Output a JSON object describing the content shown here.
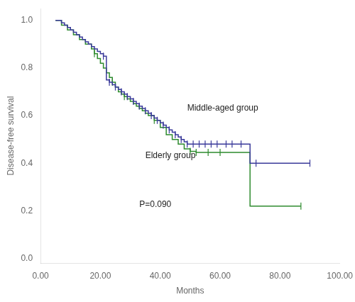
{
  "chart_data": {
    "type": "step",
    "x_label": "Months",
    "y_label": "Disease-free survival",
    "xlim": [
      0,
      100
    ],
    "ylim": [
      -0.02,
      1.05
    ],
    "xticks": [
      {
        "value": 0,
        "label": "0.00"
      },
      {
        "value": 20,
        "label": "20.00"
      },
      {
        "value": 40,
        "label": "40.00"
      },
      {
        "value": 60,
        "label": "60.00"
      },
      {
        "value": 80,
        "label": "80.00"
      },
      {
        "value": 100,
        "label": "100.00"
      }
    ],
    "yticks": [
      {
        "value": 0.0,
        "label": "0.0"
      },
      0.2,
      0.4,
      0.6,
      0.8,
      {
        "value": 1.0,
        "label": "1.0"
      }
    ],
    "grid": false,
    "legend": false,
    "series": [
      {
        "color": "#3a3a9a",
        "x": [
          5,
          7,
          8,
          9,
          10,
          11,
          12,
          13,
          14,
          15,
          16,
          17,
          18,
          19,
          20,
          21,
          22,
          23,
          24,
          25,
          26,
          27,
          28,
          29,
          30,
          31,
          32,
          33,
          34,
          35,
          36,
          37,
          38,
          39,
          40,
          41,
          42,
          43,
          44,
          45,
          46,
          47,
          48,
          49,
          50,
          51,
          52,
          54,
          56,
          58,
          60,
          62,
          64,
          65,
          67,
          70,
          87,
          90
        ],
        "values": [
          1.0,
          0.99,
          0.98,
          0.97,
          0.96,
          0.95,
          0.94,
          0.93,
          0.92,
          0.91,
          0.9,
          0.89,
          0.88,
          0.87,
          0.86,
          0.85,
          0.75,
          0.74,
          0.73,
          0.72,
          0.71,
          0.7,
          0.69,
          0.68,
          0.67,
          0.66,
          0.65,
          0.64,
          0.63,
          0.62,
          0.61,
          0.6,
          0.59,
          0.58,
          0.57,
          0.56,
          0.55,
          0.54,
          0.53,
          0.52,
          0.51,
          0.5,
          0.49,
          0.48,
          0.48,
          0.48,
          0.48,
          0.48,
          0.48,
          0.48,
          0.48,
          0.48,
          0.48,
          0.48,
          0.48,
          0.4,
          0.4,
          0.4
        ],
        "censored_x": [
          21,
          23,
          25,
          27,
          29,
          31,
          33,
          35,
          37,
          39,
          41,
          43,
          45,
          47,
          49,
          51,
          53,
          55,
          57,
          59,
          62,
          64,
          67,
          72,
          90
        ],
        "censored_values": [
          0.85,
          0.74,
          0.72,
          0.7,
          0.68,
          0.66,
          0.64,
          0.62,
          0.6,
          0.58,
          0.56,
          0.54,
          0.52,
          0.5,
          0.48,
          0.48,
          0.48,
          0.48,
          0.48,
          0.48,
          0.48,
          0.48,
          0.48,
          0.4,
          0.4
        ]
      },
      {
        "color": "#2e8b2e",
        "x": [
          5,
          7,
          9,
          11,
          13,
          15,
          17,
          18,
          19,
          20,
          21,
          22,
          23,
          24,
          25,
          26,
          27,
          28,
          29,
          30,
          31,
          32,
          33,
          34,
          35,
          36,
          38,
          40,
          42,
          44,
          46,
          48,
          50,
          52,
          54,
          56,
          58,
          60,
          62,
          65,
          70,
          87
        ],
        "values": [
          1.0,
          0.98,
          0.96,
          0.94,
          0.92,
          0.9,
          0.88,
          0.86,
          0.84,
          0.82,
          0.8,
          0.78,
          0.76,
          0.74,
          0.72,
          0.7,
          0.69,
          0.68,
          0.67,
          0.66,
          0.65,
          0.64,
          0.63,
          0.62,
          0.61,
          0.6,
          0.58,
          0.55,
          0.52,
          0.5,
          0.48,
          0.46,
          0.45,
          0.445,
          0.445,
          0.445,
          0.445,
          0.445,
          0.445,
          0.445,
          0.22,
          0.22
        ],
        "censored_x": [
          18,
          24,
          28,
          38,
          50,
          52,
          56,
          60,
          87
        ],
        "censored_values": [
          0.86,
          0.74,
          0.68,
          0.58,
          0.45,
          0.445,
          0.445,
          0.445,
          0.22
        ]
      }
    ],
    "annotations": [
      {
        "text": "Middle-aged group",
        "x": 49,
        "y": 0.62
      },
      {
        "text": "Elderly group",
        "x": 35,
        "y": 0.42
      },
      {
        "text": "P=0.090",
        "x": 33,
        "y": 0.215
      }
    ]
  }
}
